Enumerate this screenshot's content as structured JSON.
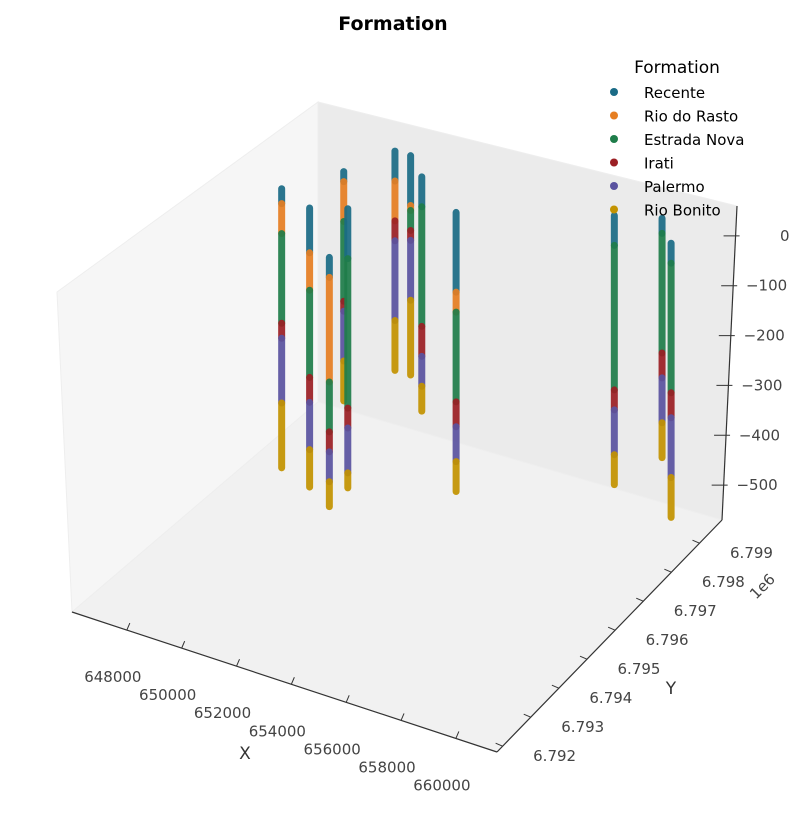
{
  "chart_data": {
    "type": "scatter",
    "projection": "3d",
    "title": "Formation",
    "xlabel": "X",
    "ylabel": "Y",
    "zlabel": "",
    "y_offset_label": "1e6",
    "xlim": [
      646000,
      661500
    ],
    "ylim": [
      6.7918,
      6.7998
    ],
    "zlim": [
      -570,
      60
    ],
    "x_ticks": [
      "648000",
      "650000",
      "652000",
      "654000",
      "656000",
      "658000",
      "660000"
    ],
    "x_tick_values": [
      648000,
      650000,
      652000,
      654000,
      656000,
      658000,
      660000
    ],
    "y_ticks": [
      "6.792",
      "6.793",
      "6.794",
      "6.795",
      "6.796",
      "6.797",
      "6.798",
      "6.799"
    ],
    "y_tick_values": [
      6.792,
      6.793,
      6.794,
      6.795,
      6.796,
      6.797,
      6.798,
      6.799
    ],
    "z_ticks": [
      "0",
      "−100",
      "−200",
      "−300",
      "−400",
      "−500"
    ],
    "z_tick_values": [
      0,
      -100,
      -200,
      -300,
      -400,
      -500
    ],
    "grid": false,
    "legend_title": "Formation",
    "legend_position": "top-right",
    "series": [
      {
        "name": "Recente",
        "color": "#1a6b86"
      },
      {
        "name": "Rio do Rasto",
        "color": "#e67e22"
      },
      {
        "name": "Estrada Nova",
        "color": "#1f7d4a"
      },
      {
        "name": "Irati",
        "color": "#9b1f24"
      },
      {
        "name": "Palermo",
        "color": "#5a53a0"
      },
      {
        "name": "Rio Bonito",
        "color": "#c39300"
      }
    ],
    "wells": [
      {
        "x": 647300,
        "y": 6.7975,
        "top": 0,
        "intervals": [
          [
            -30,
            "Recente"
          ],
          [
            -90,
            "Rio do Rasto"
          ],
          [
            -270,
            "Estrada Nova"
          ],
          [
            -300,
            "Irati"
          ],
          [
            -430,
            "Palermo"
          ],
          [
            -560,
            "Rio Bonito"
          ]
        ]
      },
      {
        "x": 648500,
        "y": 6.7985,
        "top": 0,
        "intervals": [
          [
            -20,
            "Recente"
          ],
          [
            -100,
            "Rio do Rasto"
          ],
          [
            -260,
            "Estrada Nova"
          ],
          [
            -280,
            "Irati"
          ],
          [
            -380,
            "Palermo"
          ],
          [
            -460,
            "Rio Bonito"
          ]
        ]
      },
      {
        "x": 649300,
        "y": 6.7995,
        "top": 0,
        "intervals": [
          [
            -60,
            "Recente"
          ],
          [
            -140,
            "Rio do Rasto"
          ],
          [
            -180,
            "Irati"
          ],
          [
            -340,
            "Palermo"
          ],
          [
            -440,
            "Rio Bonito"
          ]
        ]
      },
      {
        "x": 648700,
        "y": 6.7972,
        "top": 0,
        "intervals": [
          [
            -90,
            "Recente"
          ],
          [
            -165,
            "Rio do Rasto"
          ],
          [
            -340,
            "Estrada Nova"
          ],
          [
            -390,
            "Irati"
          ],
          [
            -485,
            "Palermo"
          ],
          [
            -560,
            "Rio Bonito"
          ]
        ]
      },
      {
        "x": 649800,
        "y": 6.7975,
        "top": 0,
        "intervals": [
          [
            -100,
            "Recente"
          ],
          [
            -400,
            "Estrada Nova"
          ],
          [
            -440,
            "Irati"
          ],
          [
            -530,
            "Palermo"
          ],
          [
            -560,
            "Rio Bonito"
          ]
        ]
      },
      {
        "x": 649900,
        "y": 6.7995,
        "top": 0,
        "intervals": [
          [
            -100,
            "Recente"
          ],
          [
            -110,
            "Rio do Rasto"
          ],
          [
            -150,
            "Estrada Nova"
          ],
          [
            -170,
            "Irati"
          ],
          [
            -290,
            "Palermo"
          ],
          [
            -440,
            "Rio Bonito"
          ]
        ]
      },
      {
        "x": 650800,
        "y": 6.796,
        "top": 0,
        "intervals": [
          [
            -40,
            "Recente"
          ],
          [
            -250,
            "Rio do Rasto"
          ],
          [
            -350,
            "Estrada Nova"
          ],
          [
            -390,
            "Irati"
          ],
          [
            -450,
            "Palermo"
          ],
          [
            -500,
            "Rio Bonito"
          ]
        ]
      },
      {
        "x": 650900,
        "y": 6.799,
        "top": 0,
        "intervals": [
          [
            -60,
            "Recente"
          ],
          [
            -300,
            "Estrada Nova"
          ],
          [
            -360,
            "Irati"
          ],
          [
            -420,
            "Palermo"
          ],
          [
            -470,
            "Rio Bonito"
          ]
        ]
      },
      {
        "x": 653000,
        "y": 6.7983,
        "top": 0,
        "intervals": [
          [
            -160,
            "Recente"
          ],
          [
            -200,
            "Rio do Rasto"
          ],
          [
            -380,
            "Estrada Nova"
          ],
          [
            -430,
            "Irati"
          ],
          [
            -500,
            "Palermo"
          ],
          [
            -560,
            "Rio Bonito"
          ]
        ]
      },
      {
        "x": 657700,
        "y": 6.7995,
        "top": 0,
        "intervals": [
          [
            -60,
            "Recente"
          ],
          [
            -350,
            "Estrada Nova"
          ],
          [
            -390,
            "Irati"
          ],
          [
            -480,
            "Palermo"
          ],
          [
            -540,
            "Rio Bonito"
          ]
        ]
      },
      {
        "x": 659200,
        "y": 6.7998,
        "top": 0,
        "intervals": [
          [
            -30,
            "Recente"
          ],
          [
            -270,
            "Estrada Nova"
          ],
          [
            -320,
            "Irati"
          ],
          [
            -410,
            "Palermo"
          ],
          [
            -480,
            "Rio Bonito"
          ]
        ]
      },
      {
        "x": 660200,
        "y": 6.7992,
        "top": 0,
        "intervals": [
          [
            -40,
            "Recente"
          ],
          [
            -300,
            "Estrada Nova"
          ],
          [
            -350,
            "Irati"
          ],
          [
            -470,
            "Palermo"
          ],
          [
            -550,
            "Rio Bonito"
          ]
        ]
      }
    ]
  }
}
